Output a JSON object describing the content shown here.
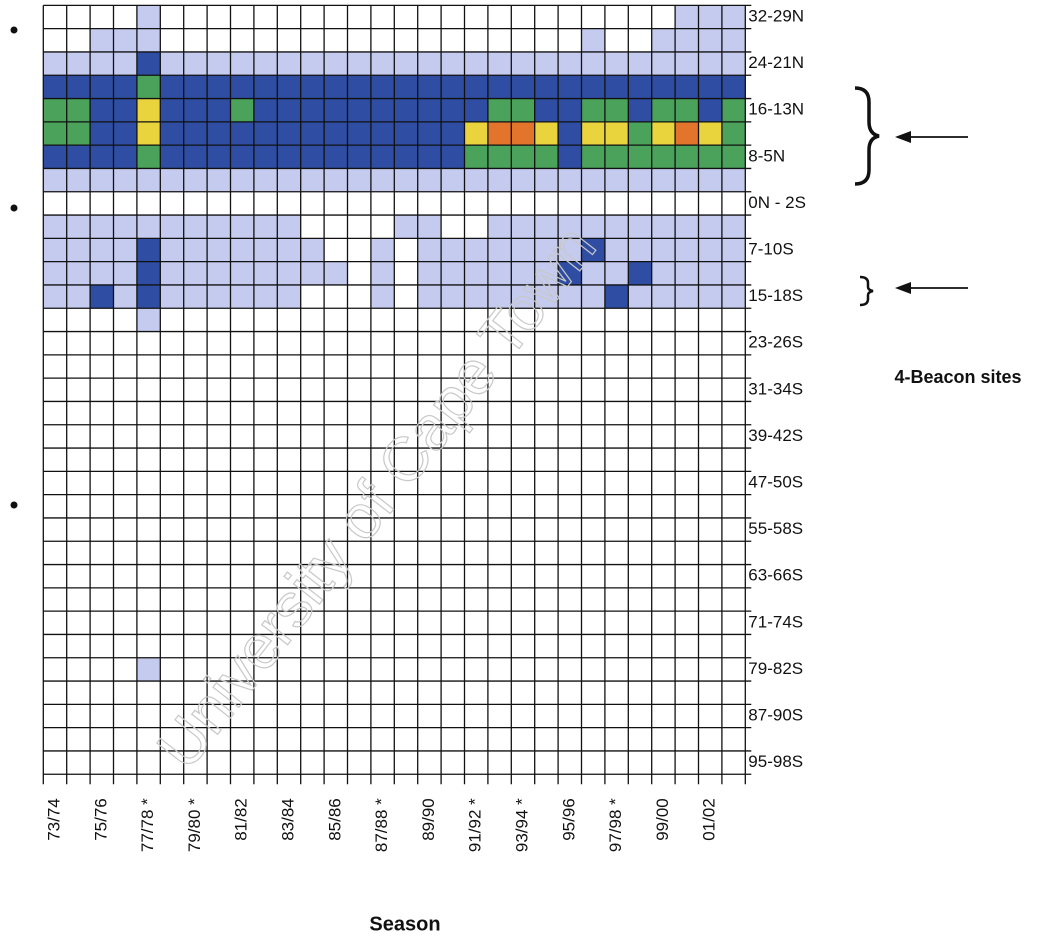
{
  "chart_data": {
    "type": "heatmap",
    "x_label": "Season",
    "annotation": "4-Beacon sites",
    "watermark": "University of Cape Town",
    "colors": [
      "#ffffff",
      "#c5cbef",
      "#2f4ea3",
      "#4ba35b",
      "#ead43d",
      "#e2742c"
    ],
    "x_categories": [
      "73/74",
      null,
      "75/76",
      null,
      "77/78 *",
      null,
      "79/80 *",
      null,
      "81/82",
      null,
      "83/84",
      null,
      "85/86",
      null,
      "87/88 *",
      null,
      "89/90",
      null,
      "91/92 *",
      null,
      "93/94 *",
      null,
      "95/96",
      null,
      "97/98 *",
      null,
      "99/00",
      null,
      "01/02",
      null
    ],
    "y_categories": [
      "32-29N",
      null,
      "24-21N",
      null,
      "16-13N",
      null,
      "8-5N",
      null,
      "0N - 2S",
      null,
      "7-10S",
      null,
      "15-18S",
      null,
      "23-26S",
      null,
      "31-34S",
      null,
      "39-42S",
      null,
      "47-50S",
      null,
      "55-58S",
      null,
      "63-66S",
      null,
      "71-74S",
      null,
      "79-82S",
      null,
      "87-90S",
      null,
      "95-98S"
    ],
    "z": [
      [
        0,
        0,
        0,
        0,
        1,
        0,
        0,
        0,
        0,
        0,
        0,
        0,
        0,
        0,
        0,
        0,
        0,
        0,
        0,
        0,
        0,
        0,
        0,
        0,
        0,
        0,
        0,
        1,
        1,
        1
      ],
      [
        0,
        0,
        1,
        1,
        1,
        0,
        0,
        0,
        0,
        0,
        0,
        0,
        0,
        0,
        0,
        0,
        0,
        0,
        0,
        0,
        0,
        0,
        0,
        1,
        0,
        0,
        1,
        1,
        1,
        1
      ],
      [
        1,
        1,
        1,
        1,
        2,
        1,
        1,
        1,
        1,
        1,
        1,
        1,
        1,
        1,
        1,
        1,
        1,
        1,
        1,
        1,
        1,
        1,
        1,
        1,
        1,
        1,
        1,
        1,
        1,
        1
      ],
      [
        2,
        2,
        2,
        2,
        3,
        2,
        2,
        2,
        2,
        2,
        2,
        2,
        2,
        2,
        2,
        2,
        2,
        2,
        2,
        2,
        2,
        2,
        2,
        2,
        2,
        2,
        2,
        2,
        2,
        2
      ],
      [
        3,
        3,
        2,
        2,
        4,
        2,
        2,
        2,
        3,
        2,
        2,
        2,
        2,
        2,
        2,
        2,
        2,
        2,
        2,
        3,
        3,
        2,
        2,
        3,
        3,
        2,
        3,
        3,
        2,
        3
      ],
      [
        3,
        3,
        2,
        2,
        4,
        2,
        2,
        2,
        2,
        2,
        2,
        2,
        2,
        2,
        2,
        2,
        2,
        2,
        4,
        5,
        5,
        4,
        2,
        4,
        4,
        3,
        4,
        5,
        4,
        3
      ],
      [
        2,
        2,
        2,
        2,
        3,
        2,
        2,
        2,
        2,
        2,
        2,
        2,
        2,
        2,
        2,
        2,
        2,
        2,
        3,
        3,
        3,
        3,
        2,
        3,
        3,
        3,
        3,
        3,
        3,
        3
      ],
      [
        1,
        1,
        1,
        1,
        1,
        1,
        1,
        1,
        1,
        1,
        1,
        1,
        1,
        1,
        1,
        1,
        1,
        1,
        1,
        1,
        1,
        1,
        1,
        1,
        1,
        1,
        1,
        1,
        1,
        1
      ],
      [
        0,
        0,
        0,
        0,
        0,
        0,
        0,
        0,
        0,
        0,
        0,
        0,
        0,
        0,
        0,
        0,
        0,
        0,
        0,
        0,
        0,
        0,
        0,
        0,
        0,
        0,
        0,
        0,
        0,
        0
      ],
      [
        1,
        1,
        1,
        1,
        1,
        1,
        1,
        1,
        1,
        1,
        1,
        0,
        0,
        0,
        0,
        1,
        1,
        0,
        0,
        1,
        1,
        1,
        1,
        1,
        1,
        1,
        1,
        1,
        1,
        1
      ],
      [
        1,
        1,
        1,
        1,
        2,
        1,
        1,
        1,
        1,
        1,
        1,
        1,
        0,
        0,
        1,
        0,
        1,
        1,
        1,
        1,
        1,
        1,
        1,
        2,
        1,
        1,
        1,
        1,
        1,
        1
      ],
      [
        1,
        1,
        1,
        1,
        2,
        1,
        1,
        1,
        1,
        1,
        1,
        1,
        1,
        0,
        1,
        0,
        1,
        1,
        1,
        1,
        1,
        1,
        2,
        1,
        1,
        2,
        1,
        1,
        1,
        1
      ],
      [
        1,
        1,
        2,
        1,
        2,
        1,
        1,
        1,
        1,
        1,
        1,
        0,
        0,
        0,
        1,
        0,
        1,
        1,
        1,
        1,
        1,
        1,
        1,
        1,
        2,
        1,
        1,
        1,
        1,
        1
      ],
      [
        0,
        0,
        0,
        0,
        1,
        0,
        0,
        0,
        0,
        0,
        0,
        0,
        0,
        0,
        0,
        0,
        0,
        0,
        0,
        0,
        0,
        0,
        0,
        0,
        0,
        0,
        0,
        0,
        0,
        0
      ],
      [
        0,
        0,
        0,
        0,
        0,
        0,
        0,
        0,
        0,
        0,
        0,
        0,
        0,
        0,
        0,
        0,
        0,
        0,
        0,
        0,
        0,
        0,
        0,
        0,
        0,
        0,
        0,
        0,
        0,
        0
      ],
      [
        0,
        0,
        0,
        0,
        0,
        0,
        0,
        0,
        0,
        0,
        0,
        0,
        0,
        0,
        0,
        0,
        0,
        0,
        0,
        0,
        0,
        0,
        0,
        0,
        0,
        0,
        0,
        0,
        0,
        0
      ],
      [
        0,
        0,
        0,
        0,
        0,
        0,
        0,
        0,
        0,
        0,
        0,
        0,
        0,
        0,
        0,
        0,
        0,
        0,
        0,
        0,
        0,
        0,
        0,
        0,
        0,
        0,
        0,
        0,
        0,
        0
      ],
      [
        0,
        0,
        0,
        0,
        0,
        0,
        0,
        0,
        0,
        0,
        0,
        0,
        0,
        0,
        0,
        0,
        0,
        0,
        0,
        0,
        0,
        0,
        0,
        0,
        0,
        0,
        0,
        0,
        0,
        0
      ],
      [
        0,
        0,
        0,
        0,
        0,
        0,
        0,
        0,
        0,
        0,
        0,
        0,
        0,
        0,
        0,
        0,
        0,
        0,
        0,
        0,
        0,
        0,
        0,
        0,
        0,
        0,
        0,
        0,
        0,
        0
      ],
      [
        0,
        0,
        0,
        0,
        0,
        0,
        0,
        0,
        0,
        0,
        0,
        0,
        0,
        0,
        0,
        0,
        0,
        0,
        0,
        0,
        0,
        0,
        0,
        0,
        0,
        0,
        0,
        0,
        0,
        0
      ],
      [
        0,
        0,
        0,
        0,
        0,
        0,
        0,
        0,
        0,
        0,
        0,
        0,
        0,
        0,
        0,
        0,
        0,
        0,
        0,
        0,
        0,
        0,
        0,
        0,
        0,
        0,
        0,
        0,
        0,
        0
      ],
      [
        0,
        0,
        0,
        0,
        0,
        0,
        0,
        0,
        0,
        0,
        0,
        0,
        0,
        0,
        0,
        0,
        0,
        0,
        0,
        0,
        0,
        0,
        0,
        0,
        0,
        0,
        0,
        0,
        0,
        0
      ],
      [
        0,
        0,
        0,
        0,
        0,
        0,
        0,
        0,
        0,
        0,
        0,
        0,
        0,
        0,
        0,
        0,
        0,
        0,
        0,
        0,
        0,
        0,
        0,
        0,
        0,
        0,
        0,
        0,
        0,
        0
      ],
      [
        0,
        0,
        0,
        0,
        0,
        0,
        0,
        0,
        0,
        0,
        0,
        0,
        0,
        0,
        0,
        0,
        0,
        0,
        0,
        0,
        0,
        0,
        0,
        0,
        0,
        0,
        0,
        0,
        0,
        0
      ],
      [
        0,
        0,
        0,
        0,
        0,
        0,
        0,
        0,
        0,
        0,
        0,
        0,
        0,
        0,
        0,
        0,
        0,
        0,
        0,
        0,
        0,
        0,
        0,
        0,
        0,
        0,
        0,
        0,
        0,
        0
      ],
      [
        0,
        0,
        0,
        0,
        0,
        0,
        0,
        0,
        0,
        0,
        0,
        0,
        0,
        0,
        0,
        0,
        0,
        0,
        0,
        0,
        0,
        0,
        0,
        0,
        0,
        0,
        0,
        0,
        0,
        0
      ],
      [
        0,
        0,
        0,
        0,
        0,
        0,
        0,
        0,
        0,
        0,
        0,
        0,
        0,
        0,
        0,
        0,
        0,
        0,
        0,
        0,
        0,
        0,
        0,
        0,
        0,
        0,
        0,
        0,
        0,
        0
      ],
      [
        0,
        0,
        0,
        0,
        0,
        0,
        0,
        0,
        0,
        0,
        0,
        0,
        0,
        0,
        0,
        0,
        0,
        0,
        0,
        0,
        0,
        0,
        0,
        0,
        0,
        0,
        0,
        0,
        0,
        0
      ],
      [
        0,
        0,
        0,
        0,
        1,
        0,
        0,
        0,
        0,
        0,
        0,
        0,
        0,
        0,
        0,
        0,
        0,
        0,
        0,
        0,
        0,
        0,
        0,
        0,
        0,
        0,
        0,
        0,
        0,
        0
      ],
      [
        0,
        0,
        0,
        0,
        0,
        0,
        0,
        0,
        0,
        0,
        0,
        0,
        0,
        0,
        0,
        0,
        0,
        0,
        0,
        0,
        0,
        0,
        0,
        0,
        0,
        0,
        0,
        0,
        0,
        0
      ],
      [
        0,
        0,
        0,
        0,
        0,
        0,
        0,
        0,
        0,
        0,
        0,
        0,
        0,
        0,
        0,
        0,
        0,
        0,
        0,
        0,
        0,
        0,
        0,
        0,
        0,
        0,
        0,
        0,
        0,
        0
      ],
      [
        0,
        0,
        0,
        0,
        0,
        0,
        0,
        0,
        0,
        0,
        0,
        0,
        0,
        0,
        0,
        0,
        0,
        0,
        0,
        0,
        0,
        0,
        0,
        0,
        0,
        0,
        0,
        0,
        0,
        0
      ],
      [
        0,
        0,
        0,
        0,
        0,
        0,
        0,
        0,
        0,
        0,
        0,
        0,
        0,
        0,
        0,
        0,
        0,
        0,
        0,
        0,
        0,
        0,
        0,
        0,
        0,
        0,
        0,
        0,
        0,
        0
      ]
    ]
  }
}
